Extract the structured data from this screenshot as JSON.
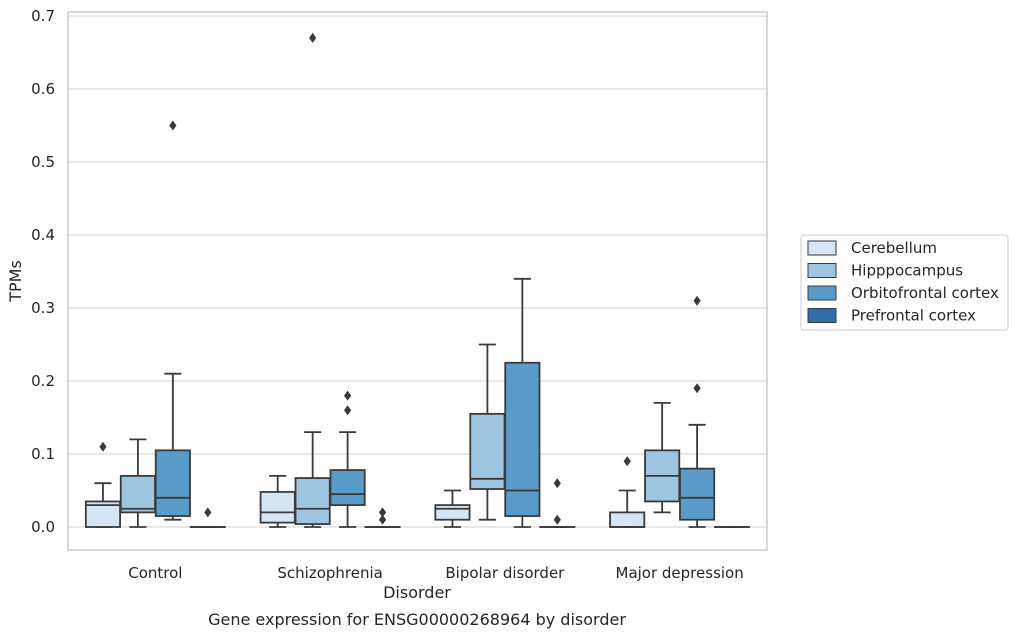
{
  "chart_data": {
    "type": "box",
    "xlabel": "Disorder",
    "ylabel": "TPMs",
    "caption": "Gene expression for ENSG00000268964 by disorder",
    "ylim": [
      -0.032,
      0.705
    ],
    "yticks": [
      "0.0",
      "0.1",
      "0.2",
      "0.3",
      "0.4",
      "0.5",
      "0.6",
      "0.7"
    ],
    "grid": "horizontal",
    "legend_position": "right",
    "categories": [
      "Control",
      "Schizophrenia",
      "Bipolar disorder",
      "Major depression"
    ],
    "series": [
      {
        "name": "Cerebellum",
        "color": "#d6e5f3",
        "boxes": [
          {
            "whislo": 0.0,
            "q1": 0.0,
            "med": 0.03,
            "q3": 0.035,
            "whishi": 0.06,
            "fliers": [
              0.11
            ]
          },
          {
            "whislo": 0.0,
            "q1": 0.006,
            "med": 0.02,
            "q3": 0.048,
            "whishi": 0.07,
            "fliers": []
          },
          {
            "whislo": 0.0,
            "q1": 0.01,
            "med": 0.025,
            "q3": 0.03,
            "whishi": 0.05,
            "fliers": []
          },
          {
            "whislo": 0.0,
            "q1": 0.0,
            "med": 0.0,
            "q3": 0.02,
            "whishi": 0.05,
            "fliers": [
              0.09
            ]
          }
        ]
      },
      {
        "name": "Hipppocampus",
        "color": "#9dc5df",
        "boxes": [
          {
            "whislo": 0.0,
            "q1": 0.02,
            "med": 0.025,
            "q3": 0.07,
            "whishi": 0.12,
            "fliers": []
          },
          {
            "whislo": 0.0,
            "q1": 0.004,
            "med": 0.025,
            "q3": 0.067,
            "whishi": 0.13,
            "fliers": [
              0.67
            ]
          },
          {
            "whislo": 0.01,
            "q1": 0.052,
            "med": 0.066,
            "q3": 0.155,
            "whishi": 0.25,
            "fliers": []
          },
          {
            "whislo": 0.02,
            "q1": 0.035,
            "med": 0.07,
            "q3": 0.105,
            "whishi": 0.17,
            "fliers": []
          }
        ]
      },
      {
        "name": "Orbitofrontal cortex",
        "color": "#5a9bc9",
        "boxes": [
          {
            "whislo": 0.01,
            "q1": 0.015,
            "med": 0.04,
            "q3": 0.105,
            "whishi": 0.21,
            "fliers": [
              0.55
            ]
          },
          {
            "whislo": 0.0,
            "q1": 0.03,
            "med": 0.045,
            "q3": 0.078,
            "whishi": 0.13,
            "fliers": [
              0.16,
              0.18
            ]
          },
          {
            "whislo": 0.0,
            "q1": 0.015,
            "med": 0.05,
            "q3": 0.225,
            "whishi": 0.34,
            "fliers": []
          },
          {
            "whislo": 0.0,
            "q1": 0.01,
            "med": 0.04,
            "q3": 0.08,
            "whishi": 0.14,
            "fliers": [
              0.19,
              0.31
            ]
          }
        ]
      },
      {
        "name": "Prefrontal cortex",
        "color": "#2c6fa9",
        "boxes": [
          {
            "whislo": 0.0,
            "q1": 0.0,
            "med": 0.0,
            "q3": 0.0,
            "whishi": 0.0,
            "fliers": [
              0.02
            ]
          },
          {
            "whislo": 0.0,
            "q1": 0.0,
            "med": 0.0,
            "q3": 0.0,
            "whishi": 0.0,
            "fliers": [
              0.01,
              0.02
            ]
          },
          {
            "whislo": 0.0,
            "q1": 0.0,
            "med": 0.0,
            "q3": 0.0,
            "whishi": 0.0,
            "fliers": [
              0.01,
              0.06
            ]
          },
          {
            "whislo": 0.0,
            "q1": 0.0,
            "med": 0.0,
            "q3": 0.0,
            "whishi": 0.0,
            "fliers": []
          }
        ]
      }
    ]
  }
}
